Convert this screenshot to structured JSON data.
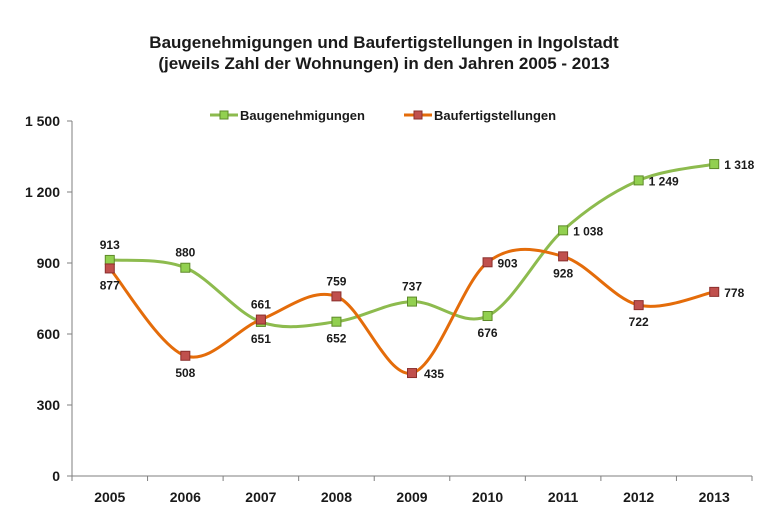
{
  "chart_data": {
    "type": "line",
    "title_line1": "Baugenehmigungen und Baufertigstellungen in Ingolstadt",
    "title_line2": "(jeweils Zahl der Wohnungen)  in den Jahren 2005 - 2013",
    "categories": [
      "2005",
      "2006",
      "2007",
      "2008",
      "2009",
      "2010",
      "2011",
      "2012",
      "2013"
    ],
    "ylim": [
      0,
      1500
    ],
    "yticks": [
      0,
      300,
      600,
      900,
      1200,
      1500
    ],
    "ytick_labels": [
      "0",
      "300",
      "600",
      "900",
      "1 200",
      "1 500"
    ],
    "grid": false,
    "legend_position": "top",
    "series": [
      {
        "name": "Baugenehmigungen",
        "color": "#8DBB4E",
        "marker_fill": "#92D050",
        "values": [
          913,
          880,
          651,
          652,
          737,
          676,
          1038,
          1249,
          1318
        ],
        "labels": [
          "913",
          "880",
          "651",
          "652",
          "737",
          "676",
          "1 038",
          "1 249",
          "1 318"
        ]
      },
      {
        "name": "Baufertigstellungen",
        "color": "#E46C0A",
        "marker_fill": "#C0504D",
        "values": [
          877,
          508,
          661,
          759,
          435,
          903,
          928,
          722,
          778
        ],
        "labels": [
          "877",
          "508",
          "661",
          "759",
          "435",
          "903",
          "928",
          "722",
          "778"
        ]
      }
    ]
  }
}
